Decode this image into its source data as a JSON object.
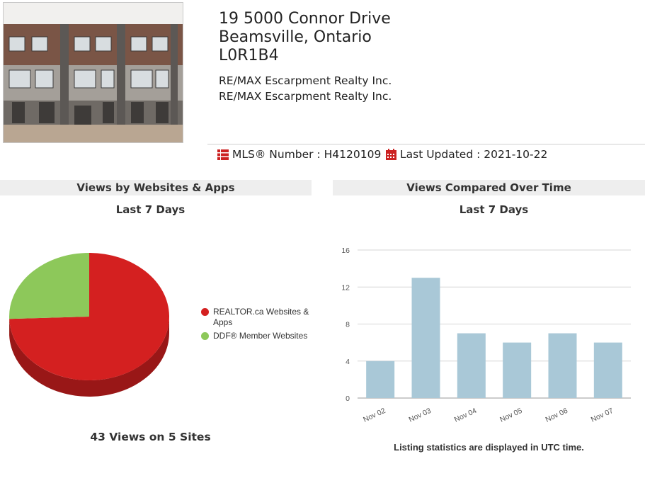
{
  "listing": {
    "address_line1": "19 5000 Connor Drive",
    "address_line2": "Beamsville, Ontario",
    "address_line3": "L0R1B4",
    "broker1": "RE/MAX Escarpment Realty Inc.",
    "broker2": "RE/MAX Escarpment Realty Inc.",
    "mls_label": "MLS® Number : H4120109",
    "updated_label": "Last Updated : 2021-10-22",
    "photo_icon": "house-photo",
    "accent_color": "#cc2222"
  },
  "left_panel": {
    "title": "Views by Websites & Apps",
    "subtitle": "Last 7 Days",
    "summary": "43 Views on 5 Sites"
  },
  "right_panel": {
    "title": "Views Compared Over Time",
    "subtitle": "Last 7 Days",
    "note": "Listing statistics are displayed in UTC time."
  },
  "chart_data": [
    {
      "type": "pie",
      "style": "3d",
      "legend_placement": "right",
      "slices": [
        {
          "label": "REALTOR.ca Websites & Apps",
          "value": 32,
          "color": "#d42020"
        },
        {
          "label": "DDF® Member Websites",
          "value": 11,
          "color": "#8dc85a"
        }
      ]
    },
    {
      "type": "bar",
      "categories": [
        "Nov 02",
        "Nov 03",
        "Nov 04",
        "Nov 05",
        "Nov 06",
        "Nov 07"
      ],
      "values": [
        4,
        13,
        7,
        6,
        7,
        6
      ],
      "ylim": [
        0,
        16
      ],
      "yticks": [
        "0",
        "4",
        "8",
        "12",
        "16"
      ],
      "grid": true,
      "bar_color": "#a9c8d7"
    }
  ]
}
